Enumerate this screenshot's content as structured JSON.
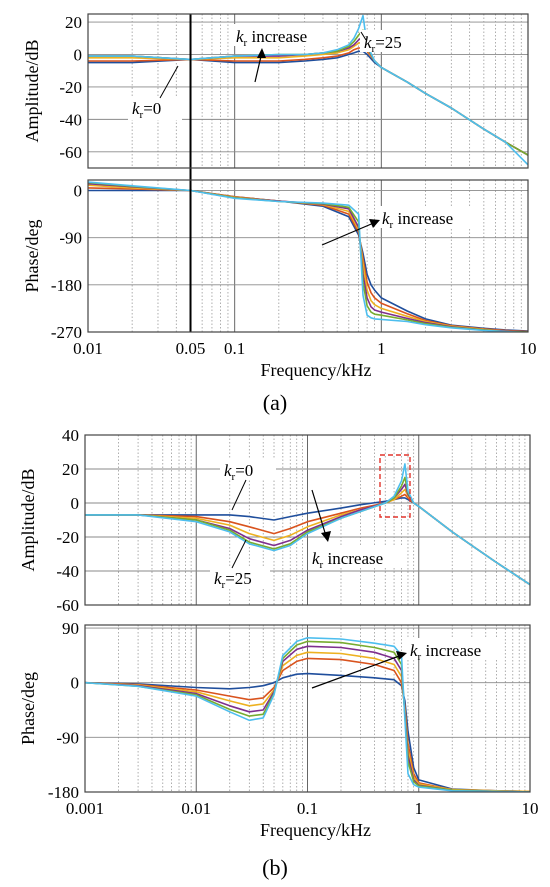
{
  "figure": {
    "panel_a_label": "(a)",
    "panel_b_label": "(b)"
  },
  "chart_data": [
    {
      "id": "a-amp",
      "type": "line",
      "xscale": "log",
      "xlim": [
        0.01,
        10
      ],
      "ylim": [
        -70,
        25
      ],
      "yticks": [
        20,
        0,
        -20,
        -40,
        -60
      ],
      "ylabel": "Amplitude/dB",
      "vline": 0.05,
      "annotations": {
        "increase": "kr increase",
        "kr0": "kr=0",
        "kr25": "kr=25"
      },
      "series_colors": [
        "#1f4e9c",
        "#d9531e",
        "#edb120",
        "#7e2f8e",
        "#77ac30",
        "#4dbeee"
      ],
      "x": [
        0.01,
        0.02,
        0.05,
        0.1,
        0.2,
        0.3,
        0.4,
        0.5,
        0.6,
        0.65,
        0.7,
        0.75,
        0.8,
        0.9,
        1,
        1.5,
        2,
        3,
        5,
        7,
        10
      ],
      "series": [
        {
          "values": [
            -5,
            -5,
            -3,
            -5,
            -5,
            -4,
            -3,
            -2,
            0,
            1,
            2,
            2,
            0,
            -5,
            -8,
            -17,
            -24,
            -33,
            -46,
            -54,
            -62
          ]
        },
        {
          "values": [
            -4,
            -4,
            -3,
            -4,
            -4,
            -3,
            -2,
            -1,
            1,
            3,
            4,
            4,
            2,
            -4,
            -8,
            -17,
            -24,
            -33,
            -46,
            -54,
            -62
          ]
        },
        {
          "values": [
            -2,
            -2,
            -3,
            -2,
            -2,
            -1,
            0,
            1,
            3,
            5,
            7,
            8,
            3,
            -4,
            -8,
            -17,
            -24,
            -33,
            -46,
            -54,
            -62
          ]
        },
        {
          "values": [
            -1,
            -1,
            -3,
            -1,
            -1,
            0,
            1,
            2,
            4,
            6,
            9,
            11,
            4,
            -4,
            -8,
            -17,
            -24,
            -33,
            -46,
            -54,
            -62
          ]
        },
        {
          "values": [
            -1,
            -1,
            -3,
            -1,
            0,
            0,
            1,
            2,
            5,
            8,
            12,
            15,
            5,
            -4,
            -8,
            -17,
            -24,
            -33,
            -46,
            -54,
            -62
          ]
        },
        {
          "values": [
            -1,
            -1,
            -3,
            -1,
            0,
            0,
            1,
            3,
            6,
            10,
            16,
            24,
            6,
            -4,
            -8,
            -17,
            -24,
            -33,
            -46,
            -54,
            -68
          ]
        }
      ]
    },
    {
      "id": "a-phase",
      "type": "line",
      "xscale": "log",
      "xlim": [
        0.01,
        10
      ],
      "ylim": [
        -270,
        20
      ],
      "yticks": [
        0,
        -90,
        -180,
        -270
      ],
      "xticks": [
        0.01,
        0.05,
        0.1,
        1,
        10
      ],
      "xtick_labels": [
        "0.01",
        "0.05",
        "0.1",
        "1",
        "10"
      ],
      "ylabel": "Phase/deg",
      "xlabel": "Frequency/kHz",
      "vline": 0.05,
      "annotations": {
        "increase": "kr increase"
      },
      "series_colors": [
        "#1f4e9c",
        "#d9531e",
        "#edb120",
        "#7e2f8e",
        "#77ac30",
        "#4dbeee"
      ],
      "x": [
        0.01,
        0.02,
        0.05,
        0.1,
        0.2,
        0.4,
        0.6,
        0.7,
        0.75,
        0.8,
        0.85,
        0.9,
        1,
        1.5,
        2,
        3,
        5,
        7,
        10
      ],
      "series": [
        {
          "values": [
            0,
            0,
            0,
            -12,
            -20,
            -30,
            -50,
            -85,
            -120,
            -160,
            -180,
            -190,
            -205,
            -230,
            -245,
            -257,
            -263,
            -266,
            -268
          ]
        },
        {
          "values": [
            5,
            3,
            0,
            -12,
            -20,
            -28,
            -45,
            -80,
            -130,
            -175,
            -195,
            -205,
            -215,
            -235,
            -248,
            -258,
            -264,
            -267,
            -269
          ]
        },
        {
          "values": [
            10,
            5,
            0,
            -13,
            -20,
            -27,
            -40,
            -75,
            -140,
            -190,
            -210,
            -218,
            -225,
            -240,
            -250,
            -259,
            -265,
            -268,
            -270
          ]
        },
        {
          "values": [
            13,
            7,
            0,
            -14,
            -20,
            -26,
            -35,
            -70,
            -160,
            -205,
            -222,
            -228,
            -232,
            -244,
            -252,
            -260,
            -266,
            -268,
            -270
          ]
        },
        {
          "values": [
            15,
            8,
            0,
            -14,
            -21,
            -25,
            -32,
            -60,
            -175,
            -220,
            -232,
            -236,
            -238,
            -247,
            -254,
            -261,
            -266,
            -269,
            -270
          ]
        },
        {
          "values": [
            16,
            9,
            0,
            -15,
            -21,
            -24,
            -28,
            -45,
            -200,
            -238,
            -243,
            -245,
            -246,
            -250,
            -256,
            -262,
            -267,
            -269,
            -271
          ]
        }
      ]
    },
    {
      "id": "b-amp",
      "type": "line",
      "xscale": "log",
      "xlim": [
        0.001,
        10
      ],
      "ylim": [
        -60,
        40
      ],
      "yticks": [
        40,
        20,
        0,
        -20,
        -40,
        -60
      ],
      "ylabel": "Amplitude/dB",
      "annotations": {
        "kr0": "kr=0",
        "kr25": "kr=25",
        "increase": "kr increase"
      },
      "series_colors": [
        "#1f4e9c",
        "#d9531e",
        "#edb120",
        "#7e2f8e",
        "#77ac30",
        "#4dbeee"
      ],
      "x": [
        0.001,
        0.003,
        0.01,
        0.02,
        0.03,
        0.05,
        0.07,
        0.1,
        0.2,
        0.3,
        0.5,
        0.6,
        0.7,
        0.75,
        0.8,
        0.9,
        1,
        2,
        3,
        5,
        10
      ],
      "series": [
        {
          "values": [
            -7,
            -7,
            -7,
            -7,
            -8,
            -10,
            -8,
            -6,
            -3,
            -1,
            1,
            2,
            3,
            3,
            2,
            0,
            -2,
            -17,
            -25,
            -35,
            -48
          ]
        },
        {
          "values": [
            -7,
            -7,
            -8,
            -11,
            -14,
            -18,
            -15,
            -11,
            -6,
            -3,
            0,
            2,
            4,
            5,
            3,
            0,
            -2,
            -17,
            -25,
            -35,
            -48
          ]
        },
        {
          "values": [
            -7,
            -7,
            -9,
            -13,
            -18,
            -22,
            -19,
            -14,
            -7,
            -4,
            0,
            2,
            6,
            8,
            4,
            0,
            -2,
            -17,
            -25,
            -35,
            -48
          ]
        },
        {
          "values": [
            -7,
            -7,
            -10,
            -15,
            -21,
            -25,
            -22,
            -16,
            -8,
            -4,
            0,
            3,
            8,
            11,
            5,
            0,
            -2,
            -17,
            -25,
            -35,
            -48
          ]
        },
        {
          "values": [
            -7,
            -7,
            -10,
            -16,
            -23,
            -27,
            -24,
            -17,
            -9,
            -5,
            0,
            3,
            10,
            15,
            6,
            0,
            -2,
            -17,
            -25,
            -35,
            -48
          ]
        },
        {
          "values": [
            -7,
            -7,
            -11,
            -17,
            -24,
            -28,
            -25,
            -18,
            -9,
            -5,
            0,
            4,
            13,
            23,
            7,
            0,
            -2,
            -17,
            -25,
            -35,
            -48
          ]
        }
      ]
    },
    {
      "id": "b-phase",
      "type": "line",
      "xscale": "log",
      "xlim": [
        0.001,
        10
      ],
      "ylim": [
        -180,
        95
      ],
      "yticks": [
        90,
        0,
        -90,
        -180
      ],
      "xticks": [
        0.001,
        0.01,
        0.1,
        1,
        10
      ],
      "xtick_labels": [
        "0.001",
        "0.01",
        "0.1",
        "1",
        "10"
      ],
      "ylabel": "Phase/deg",
      "xlabel": "Frequency/kHz",
      "annotations": {
        "increase": "kr increase"
      },
      "series_colors": [
        "#1f4e9c",
        "#d9531e",
        "#edb120",
        "#7e2f8e",
        "#77ac30",
        "#4dbeee"
      ],
      "x": [
        0.001,
        0.003,
        0.01,
        0.02,
        0.03,
        0.04,
        0.05,
        0.06,
        0.08,
        0.1,
        0.2,
        0.4,
        0.6,
        0.7,
        0.75,
        0.8,
        0.9,
        1,
        2,
        5,
        10
      ],
      "series": [
        {
          "values": [
            0,
            -2,
            -8,
            -10,
            -8,
            -5,
            0,
            8,
            14,
            15,
            12,
            8,
            5,
            -5,
            -30,
            -80,
            -140,
            -160,
            -175,
            -178,
            -179
          ]
        },
        {
          "values": [
            0,
            -3,
            -12,
            -22,
            -28,
            -25,
            -8,
            20,
            35,
            40,
            38,
            30,
            20,
            0,
            -40,
            -100,
            -150,
            -165,
            -176,
            -178,
            -179
          ]
        },
        {
          "values": [
            0,
            -4,
            -15,
            -30,
            -38,
            -35,
            -12,
            28,
            45,
            50,
            48,
            40,
            30,
            10,
            -45,
            -110,
            -155,
            -167,
            -176,
            -178,
            -179
          ]
        },
        {
          "values": [
            0,
            -5,
            -18,
            -38,
            -48,
            -45,
            -15,
            35,
            55,
            60,
            58,
            50,
            40,
            20,
            -50,
            -120,
            -160,
            -169,
            -177,
            -179,
            -180
          ]
        },
        {
          "values": [
            0,
            -6,
            -20,
            -44,
            -55,
            -52,
            -18,
            40,
            62,
            68,
            66,
            58,
            50,
            30,
            -55,
            -130,
            -163,
            -170,
            -177,
            -179,
            -180
          ]
        },
        {
          "values": [
            0,
            -6,
            -22,
            -48,
            -62,
            -58,
            -20,
            45,
            68,
            74,
            72,
            65,
            60,
            45,
            -60,
            -150,
            -168,
            -172,
            -178,
            -179,
            -180
          ]
        }
      ]
    }
  ]
}
